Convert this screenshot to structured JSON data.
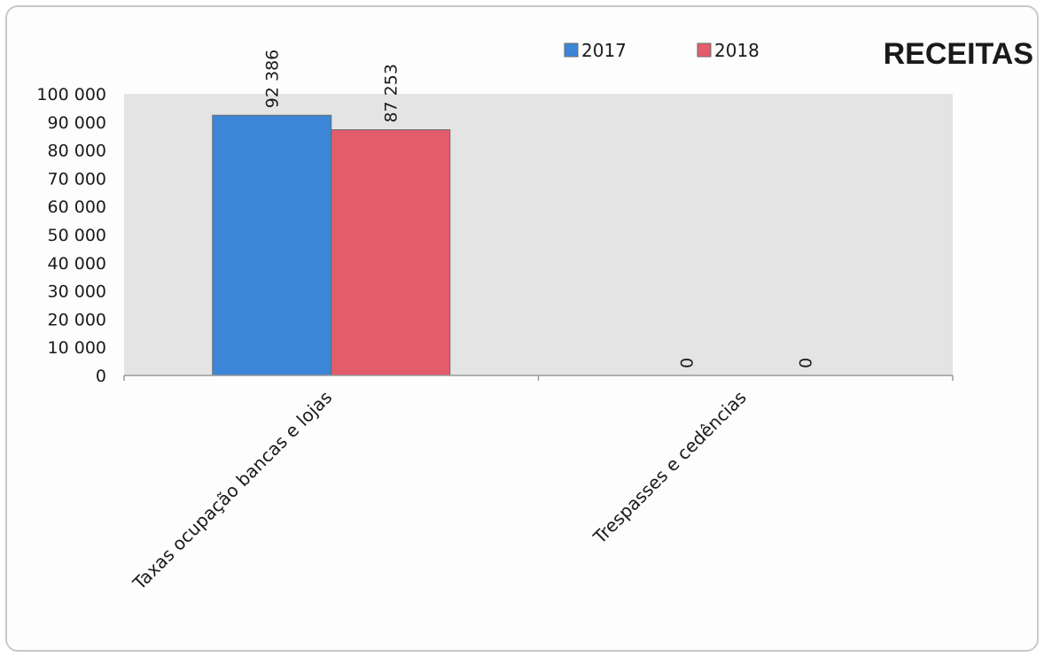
{
  "chart_data": {
    "type": "bar",
    "title": "RECEITAS",
    "categories": [
      "Taxas ocupação bancas e lojas",
      "Trespasses e cedências"
    ],
    "series": [
      {
        "name": "2017",
        "values": [
          92386,
          0
        ],
        "labels": [
          "92 386",
          "0"
        ]
      },
      {
        "name": "2018",
        "values": [
          87253,
          0
        ],
        "labels": [
          "87 253",
          "0"
        ]
      }
    ],
    "ylim": [
      0,
      100000
    ],
    "yticks": [
      0,
      10000,
      20000,
      30000,
      40000,
      50000,
      60000,
      70000,
      80000,
      90000,
      100000
    ],
    "ytick_labels": [
      "0",
      "10 000",
      "20 000",
      "30 000",
      "40 000",
      "50 000",
      "60 000",
      "70 000",
      "80 000",
      "90 000",
      "100 000"
    ],
    "xlabel": "",
    "ylabel": "",
    "grid": false,
    "legend_position": "top",
    "colors": {
      "2017": "#3b86d6",
      "2018": "#e35c6b",
      "plot_bg": "#e4e4e4",
      "axis": "#9a9a9a"
    }
  }
}
